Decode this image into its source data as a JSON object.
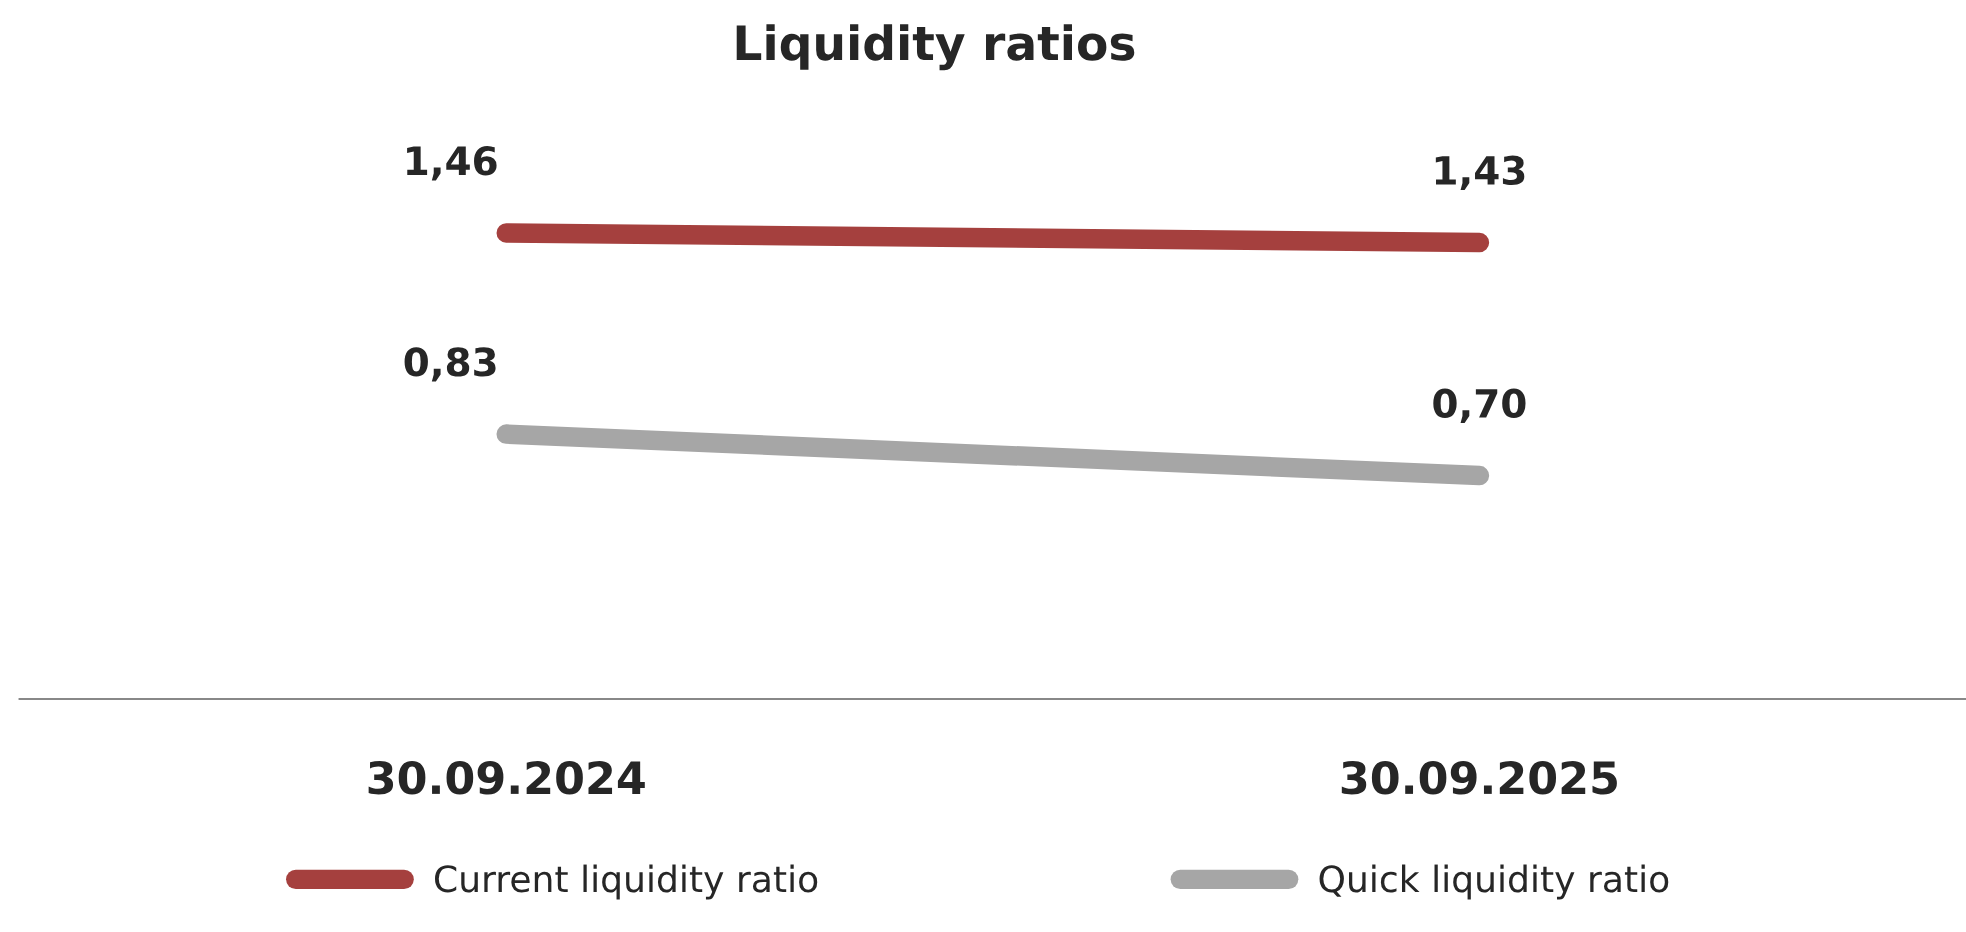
{
  "chart_data": {
    "type": "line",
    "title": "Liquidity ratios",
    "categories": [
      "30.09.2024",
      "30.09.2025"
    ],
    "series": [
      {
        "name": "Current liquidity ratio",
        "color": "#a5403e",
        "values": [
          1.46,
          1.43
        ],
        "value_labels": [
          "1,46",
          "1,43"
        ]
      },
      {
        "name": "Quick liquidity ratio",
        "color": "#a6a6a6",
        "values": [
          0.83,
          0.7
        ],
        "value_labels": [
          "0,83",
          "0,70"
        ]
      }
    ],
    "legend": "bottom",
    "grid": false,
    "marker": "none",
    "line_style": "solid"
  }
}
